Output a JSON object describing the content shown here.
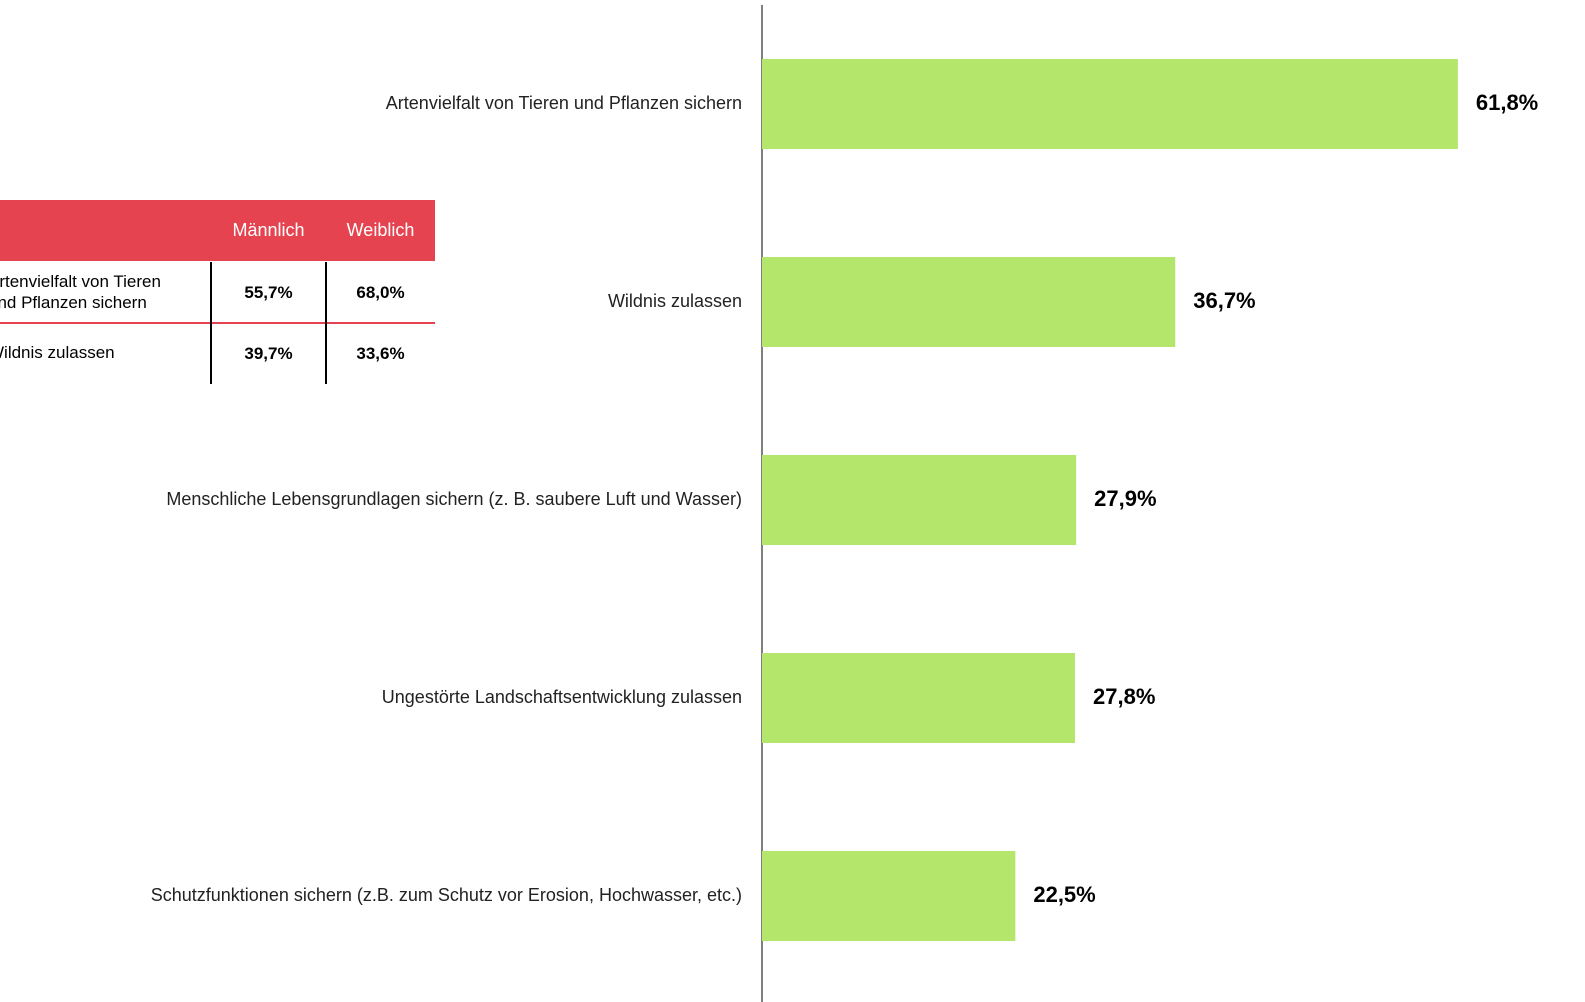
{
  "chart_data": {
    "type": "bar",
    "categories": [
      "Artenvielfalt von Tieren und Pflanzen sichern",
      "Wildnis zulassen",
      "Menschliche Lebensgrundlagen sichern (z. B. saubere Luft und Wasser)",
      "Ungestörte Landschaftsentwicklung zulassen",
      "Schutzfunktionen sichern (z.B. zum Schutz vor Erosion, Hochwasser, etc.)"
    ],
    "values": [
      61.8,
      36.7,
      27.9,
      27.8,
      22.5
    ],
    "value_labels": [
      "61,8%",
      "36,7%",
      "27,9%",
      "27,8%",
      "22,5%"
    ],
    "color": "#b3e66a"
  },
  "table": {
    "header_color": "#e5434f",
    "columns": [
      "Männlich",
      "Weiblich"
    ],
    "rows": [
      [
        "Artenvielfalt von Tieren und Pflanzen sichern",
        "55,7%",
        "68,0%"
      ],
      [
        "Wildnis zulassen",
        "39,7%",
        "33,6%"
      ]
    ]
  }
}
